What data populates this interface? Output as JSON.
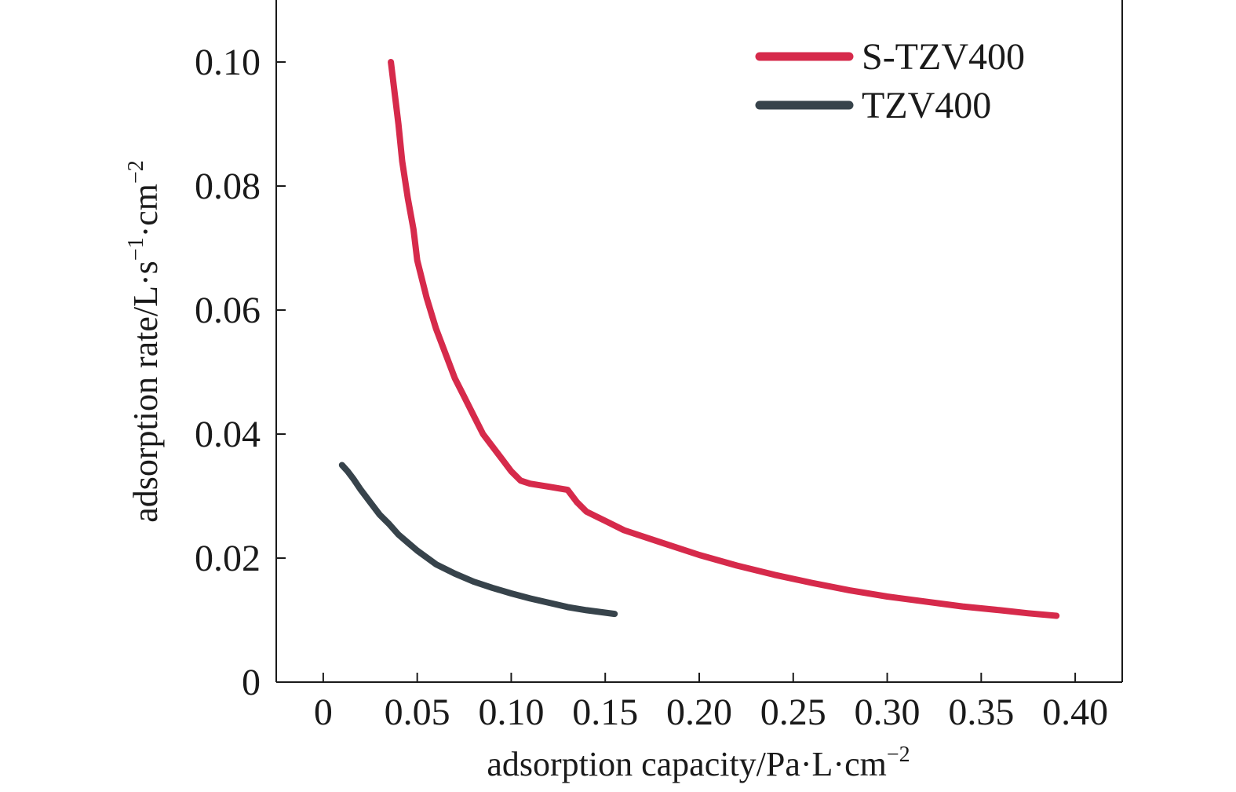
{
  "chart_data": {
    "type": "line",
    "title": "",
    "xlabel": {
      "main": "adsorption capacity/Pa·L·cm",
      "sup": "−2"
    },
    "ylabel": {
      "main": "adsorption rate/L·s",
      "sup1": "−1",
      "mid": "·cm",
      "sup2": "−2"
    },
    "xlim": [
      -0.025,
      0.425
    ],
    "ylim": [
      0,
      0.11
    ],
    "x_ticks": [
      0,
      0.05,
      0.1,
      0.15,
      0.2,
      0.25,
      0.3,
      0.35,
      0.4
    ],
    "x_tick_labels": [
      "0",
      "0.05",
      "0.10",
      "0.15",
      "0.20",
      "0.25",
      "0.30",
      "0.35",
      "0.40"
    ],
    "y_ticks": [
      0,
      0.02,
      0.04,
      0.06,
      0.08,
      0.1
    ],
    "y_tick_labels": [
      "0",
      "0.02",
      "0.04",
      "0.06",
      "0.08",
      "0.10"
    ],
    "grid": false,
    "legend_position": "top-right",
    "series": [
      {
        "name": "S-TZV400",
        "color": "#d62a4b",
        "points": [
          [
            0.036,
            0.1
          ],
          [
            0.038,
            0.095
          ],
          [
            0.04,
            0.09
          ],
          [
            0.042,
            0.084
          ],
          [
            0.045,
            0.078
          ],
          [
            0.048,
            0.073
          ],
          [
            0.05,
            0.068
          ],
          [
            0.055,
            0.062
          ],
          [
            0.06,
            0.057
          ],
          [
            0.065,
            0.053
          ],
          [
            0.07,
            0.049
          ],
          [
            0.075,
            0.046
          ],
          [
            0.08,
            0.043
          ],
          [
            0.085,
            0.04
          ],
          [
            0.09,
            0.038
          ],
          [
            0.095,
            0.036
          ],
          [
            0.1,
            0.034
          ],
          [
            0.105,
            0.0325
          ],
          [
            0.11,
            0.032
          ],
          [
            0.12,
            0.0315
          ],
          [
            0.13,
            0.031
          ],
          [
            0.135,
            0.029
          ],
          [
            0.14,
            0.0275
          ],
          [
            0.15,
            0.026
          ],
          [
            0.16,
            0.0245
          ],
          [
            0.18,
            0.0225
          ],
          [
            0.2,
            0.0205
          ],
          [
            0.22,
            0.0188
          ],
          [
            0.24,
            0.0173
          ],
          [
            0.26,
            0.016
          ],
          [
            0.28,
            0.0148
          ],
          [
            0.3,
            0.0138
          ],
          [
            0.32,
            0.013
          ],
          [
            0.34,
            0.0122
          ],
          [
            0.36,
            0.0116
          ],
          [
            0.375,
            0.0111
          ],
          [
            0.39,
            0.0107
          ]
        ]
      },
      {
        "name": "TZV400",
        "color": "#37434b",
        "points": [
          [
            0.01,
            0.035
          ],
          [
            0.013,
            0.034
          ],
          [
            0.016,
            0.0328
          ],
          [
            0.02,
            0.031
          ],
          [
            0.025,
            0.029
          ],
          [
            0.03,
            0.027
          ],
          [
            0.035,
            0.0255
          ],
          [
            0.04,
            0.0238
          ],
          [
            0.045,
            0.0225
          ],
          [
            0.05,
            0.0212
          ],
          [
            0.06,
            0.019
          ],
          [
            0.07,
            0.0175
          ],
          [
            0.08,
            0.0162
          ],
          [
            0.09,
            0.0152
          ],
          [
            0.1,
            0.0143
          ],
          [
            0.11,
            0.0135
          ],
          [
            0.12,
            0.0128
          ],
          [
            0.13,
            0.0121
          ],
          [
            0.14,
            0.0116
          ],
          [
            0.155,
            0.011
          ]
        ]
      }
    ]
  }
}
